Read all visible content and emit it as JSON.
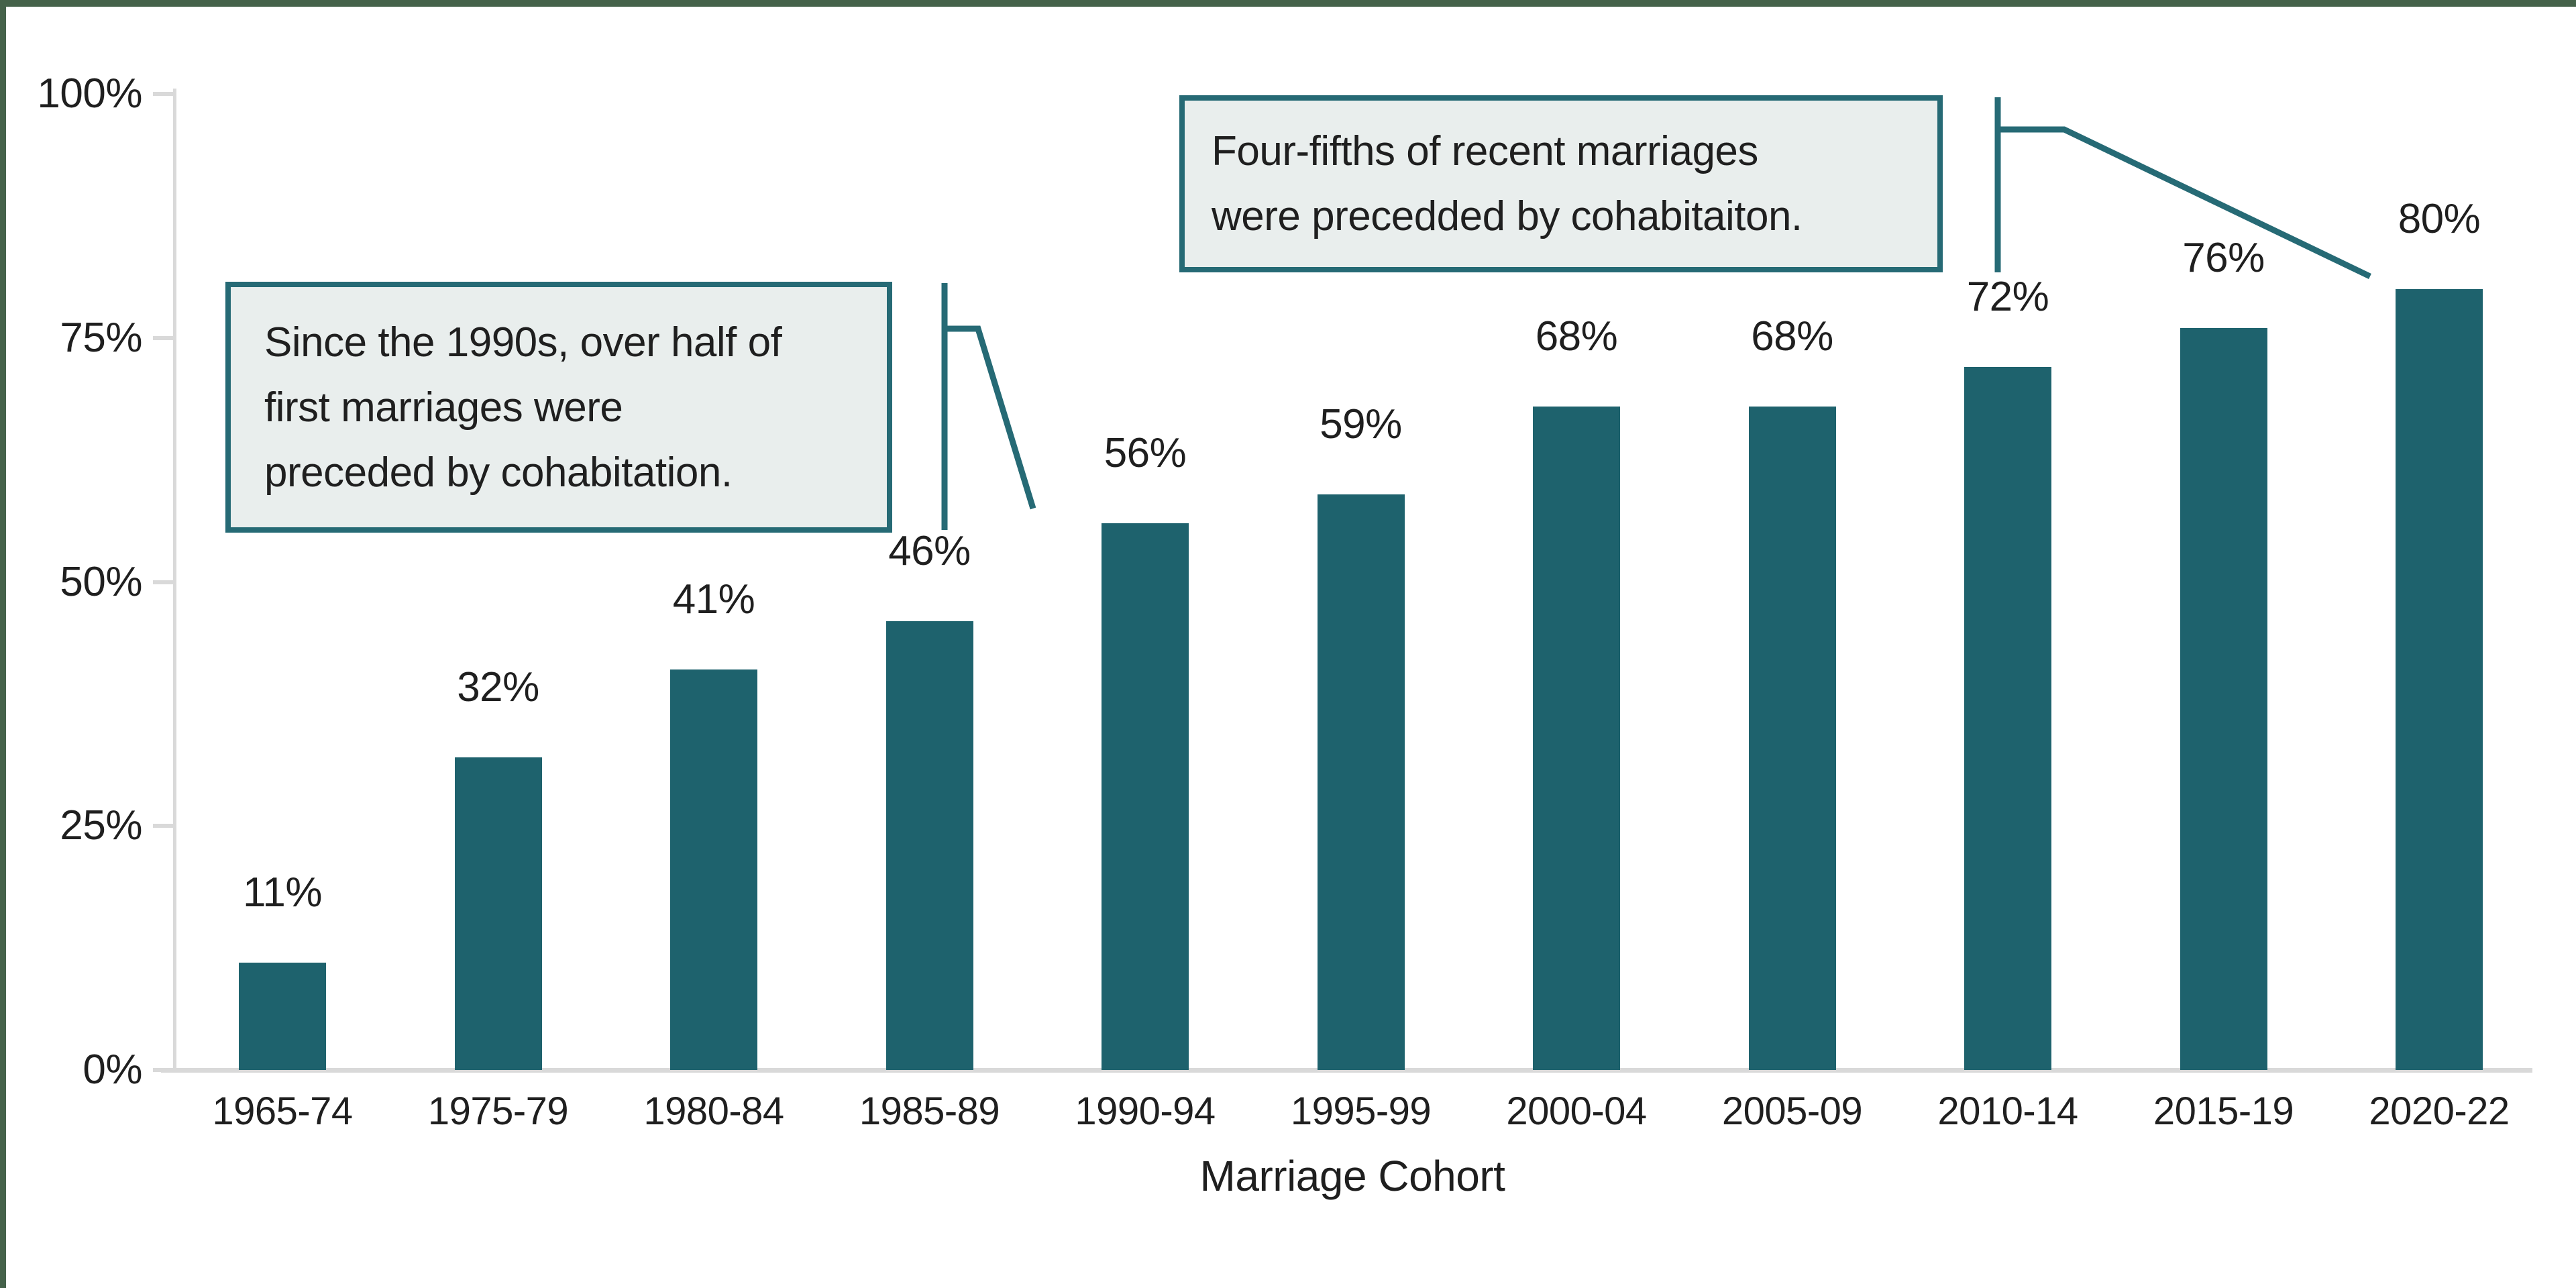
{
  "chart_data": {
    "type": "bar",
    "title": "",
    "xlabel": "Marriage Cohort",
    "ylabel": "",
    "categories": [
      "1965-74",
      "1975-79",
      "1980-84",
      "1985-89",
      "1990-94",
      "1995-99",
      "2000-04",
      "2005-09",
      "2010-14",
      "2015-19",
      "2020-22"
    ],
    "values": [
      11,
      32,
      41,
      46,
      56,
      59,
      68,
      68,
      72,
      76,
      80
    ],
    "value_labels": [
      "11%",
      "32%",
      "41%",
      "46%",
      "56%",
      "59%",
      "68%",
      "68%",
      "72%",
      "76%",
      "80%"
    ],
    "yticks": [
      {
        "value": 0,
        "label": "0%"
      },
      {
        "value": 25,
        "label": "25%"
      },
      {
        "value": 50,
        "label": "50%"
      },
      {
        "value": 75,
        "label": "75%"
      },
      {
        "value": 100,
        "label": "100%"
      }
    ],
    "ylim": [
      0,
      100
    ],
    "grid": false,
    "legend_position": "none",
    "annotations": [
      {
        "text": "Since the 1990s, over half of first marriages were preceded by cohabitation."
      },
      {
        "text": "Four-fifths of recent marriages were precedded by cohabitaiton."
      }
    ]
  },
  "boxes": {
    "left": {
      "lines": [
        "Since the 1990s, over half of",
        "first marriages were",
        "preceded by cohabitation."
      ]
    },
    "right": {
      "lines": [
        "Four-fifths of recent marriages",
        "were precedded by cohabitaiton."
      ]
    }
  },
  "colors": {
    "bar": "#1e626d",
    "callout": "#266a75",
    "box_fill": "#e9eeed",
    "page_border": "#45624a",
    "axis_line": "#d9d9d9",
    "text": "#1f1f1f"
  }
}
